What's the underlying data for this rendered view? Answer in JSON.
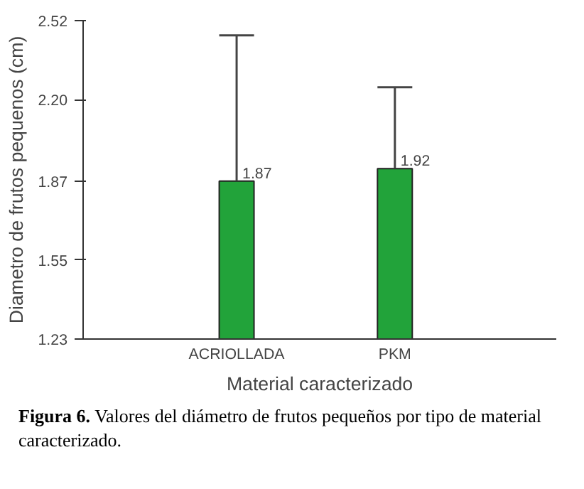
{
  "chart_data": {
    "type": "bar",
    "xlabel": "Material caracterizado",
    "ylabel": "Diametro de frutos pequenos (cm)",
    "categories": [
      "ACRIOLLADA",
      "PKM"
    ],
    "values": [
      1.87,
      1.92
    ],
    "color": "#22a33a",
    "errors": [
      [
        1.87,
        2.46
      ],
      [
        1.92,
        2.25
      ]
    ],
    "ylim": [
      1.23,
      2.52
    ],
    "yticks": [
      1.23,
      1.55,
      1.87,
      {
        "value": 2.2,
        "label": "2.20"
      },
      2.52
    ],
    "data_labels": true,
    "grid": false,
    "annotations": [
      "Figura 6. Valores del diámetro de frutos pequeños por tipo de material caracterizado."
    ]
  }
}
